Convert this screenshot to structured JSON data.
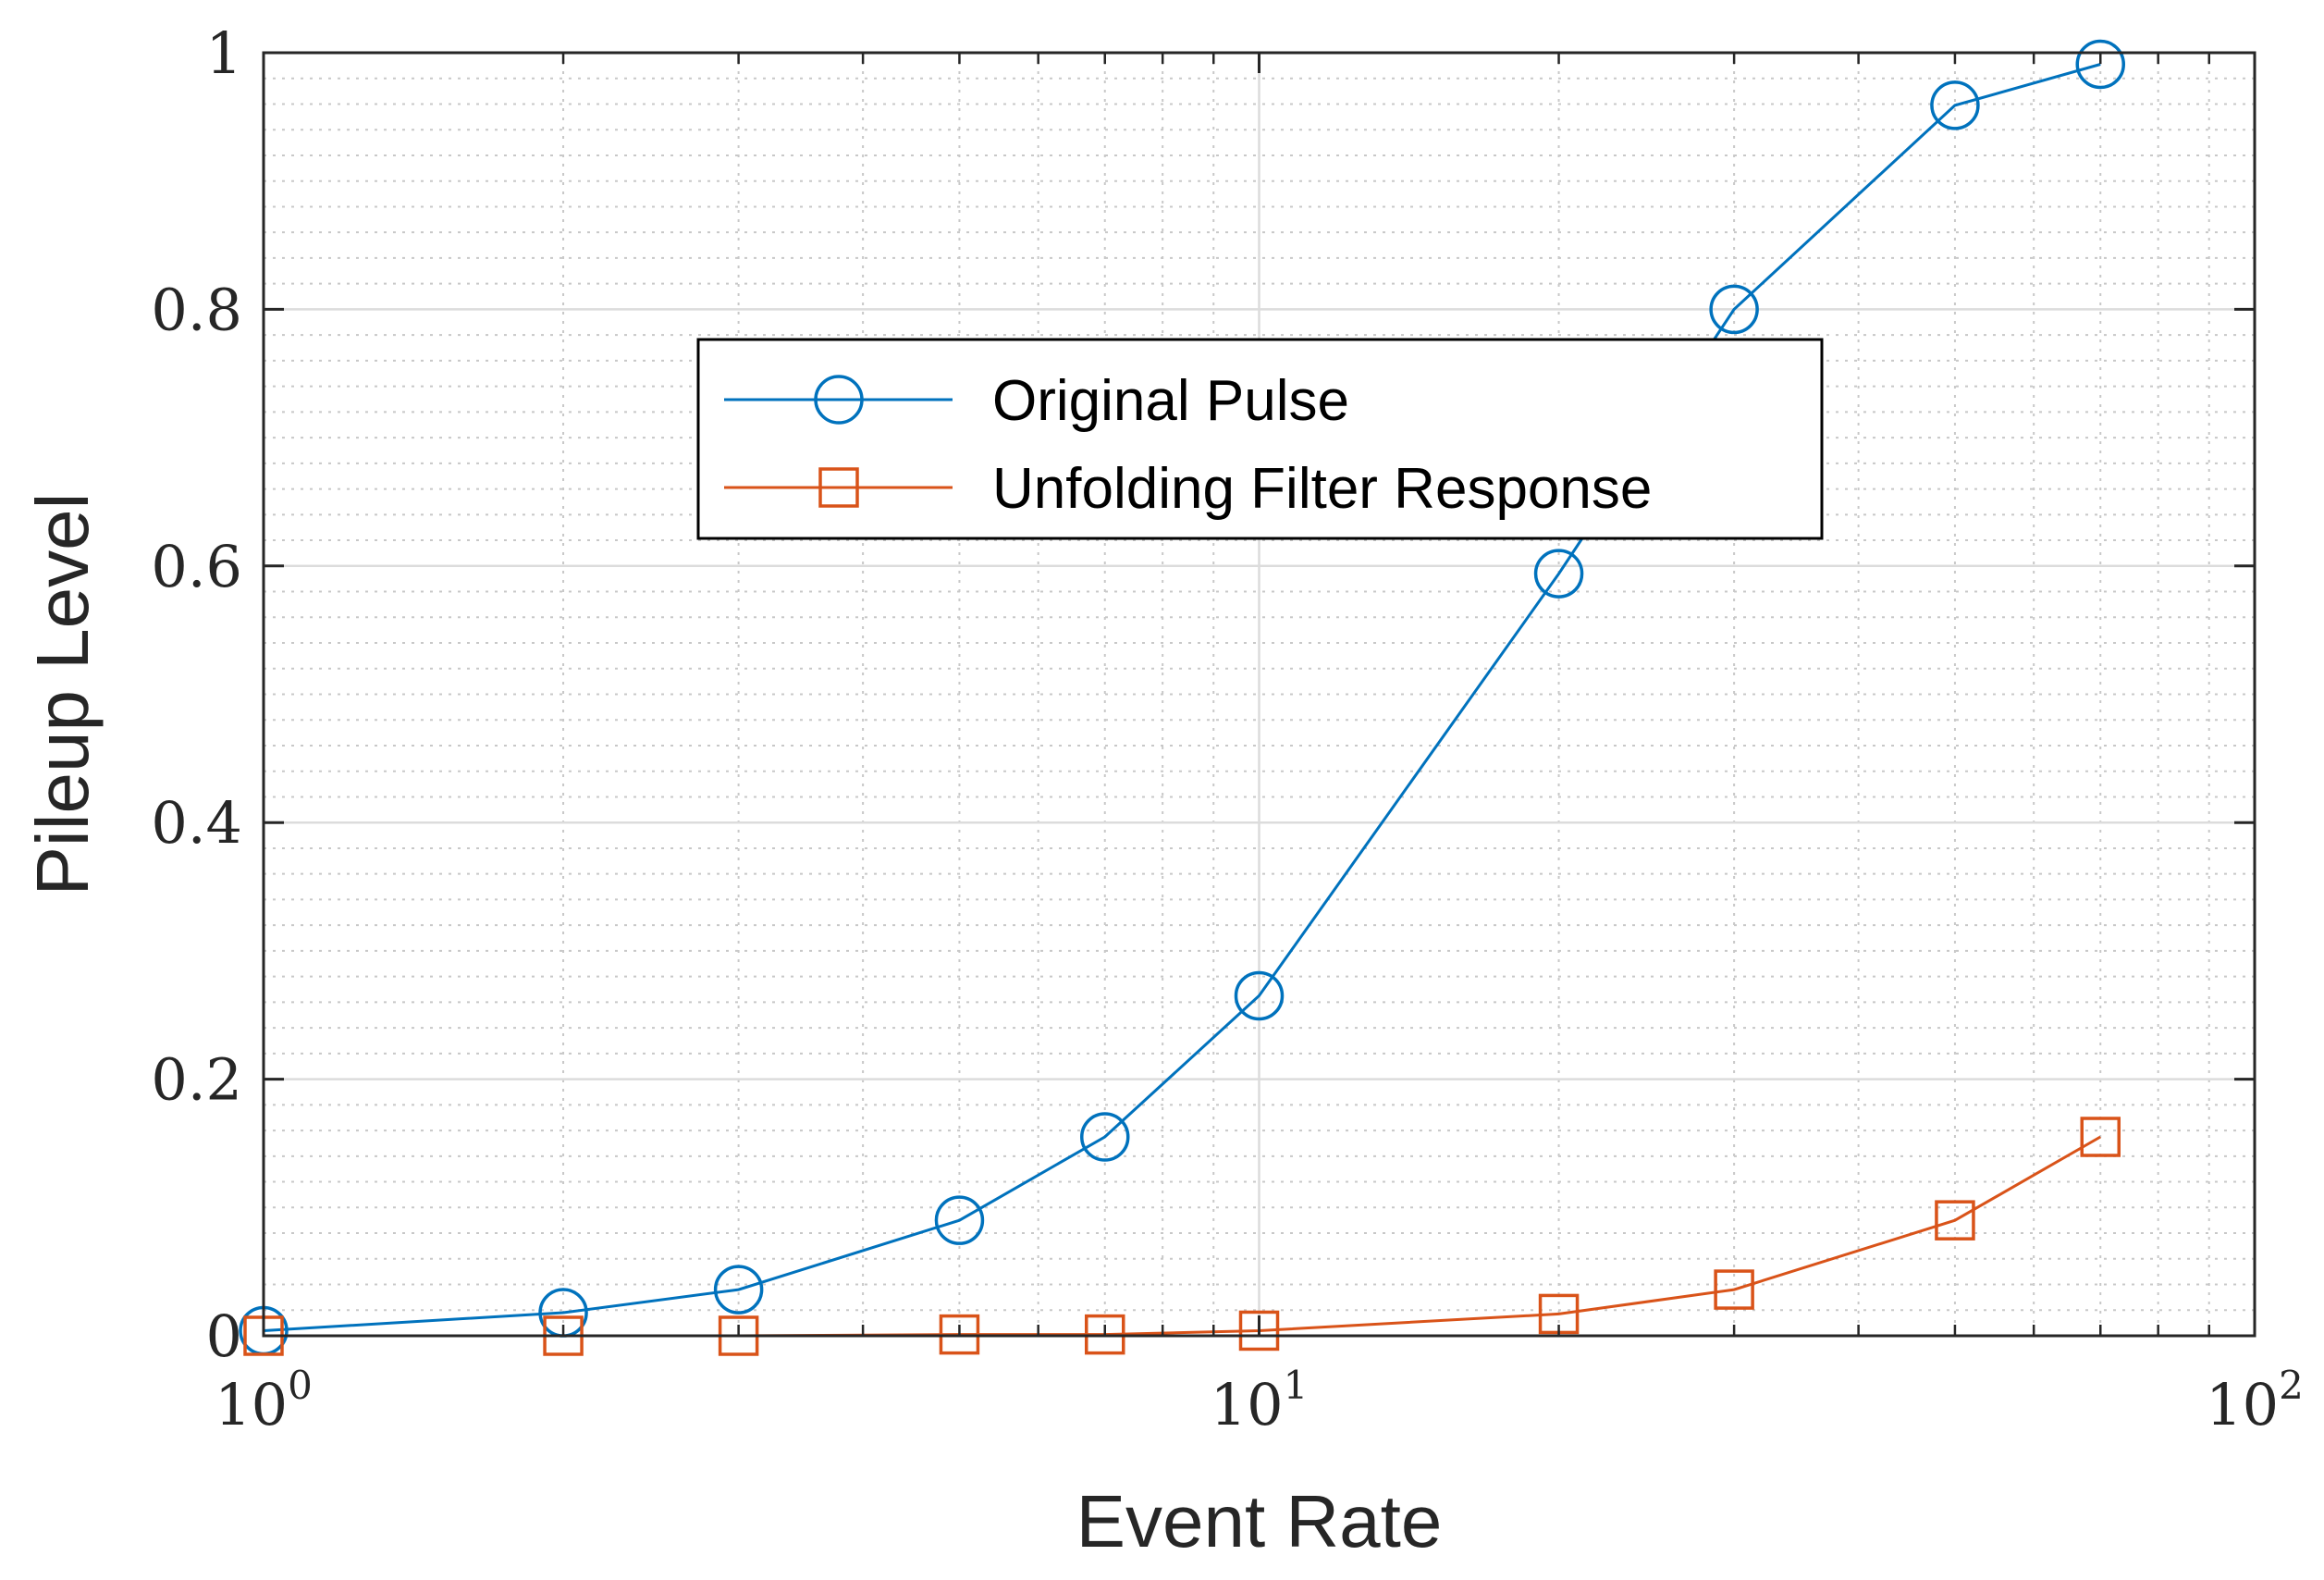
{
  "chart_data": {
    "type": "line",
    "title": "",
    "xlabel": "Event Rate",
    "ylabel": "Pileup Level",
    "xscale": "log",
    "xlim": [
      1,
      100
    ],
    "ylim": [
      0,
      1
    ],
    "x_ticks": [
      {
        "base": "10",
        "exp": "0",
        "value": 1
      },
      {
        "base": "10",
        "exp": "1",
        "value": 10
      },
      {
        "base": "10",
        "exp": "2",
        "value": 100
      }
    ],
    "y_ticks": [
      "0",
      "0.2",
      "0.4",
      "0.6",
      "0.8",
      "1"
    ],
    "y_tick_values": [
      0,
      0.2,
      0.4,
      0.6,
      0.8,
      1
    ],
    "grid": true,
    "minor_grid": true,
    "legend_position": "center-top",
    "series": [
      {
        "name": "Original Pulse",
        "color": "#0072BD",
        "marker": "circle",
        "x": [
          1,
          2,
          3,
          5,
          7,
          10,
          20,
          30,
          50,
          70
        ],
        "y": [
          0.004,
          0.018,
          0.036,
          0.09,
          0.155,
          0.265,
          0.594,
          0.8,
          0.959,
          0.991
        ]
      },
      {
        "name": "Unfolding Filter Response",
        "color": "#D95319",
        "marker": "square",
        "x": [
          1,
          2,
          3,
          5,
          7,
          10,
          20,
          30,
          50,
          70
        ],
        "y": [
          0.0,
          0.0,
          0.0,
          0.001,
          0.001,
          0.004,
          0.017,
          0.036,
          0.09,
          0.155
        ]
      }
    ]
  }
}
